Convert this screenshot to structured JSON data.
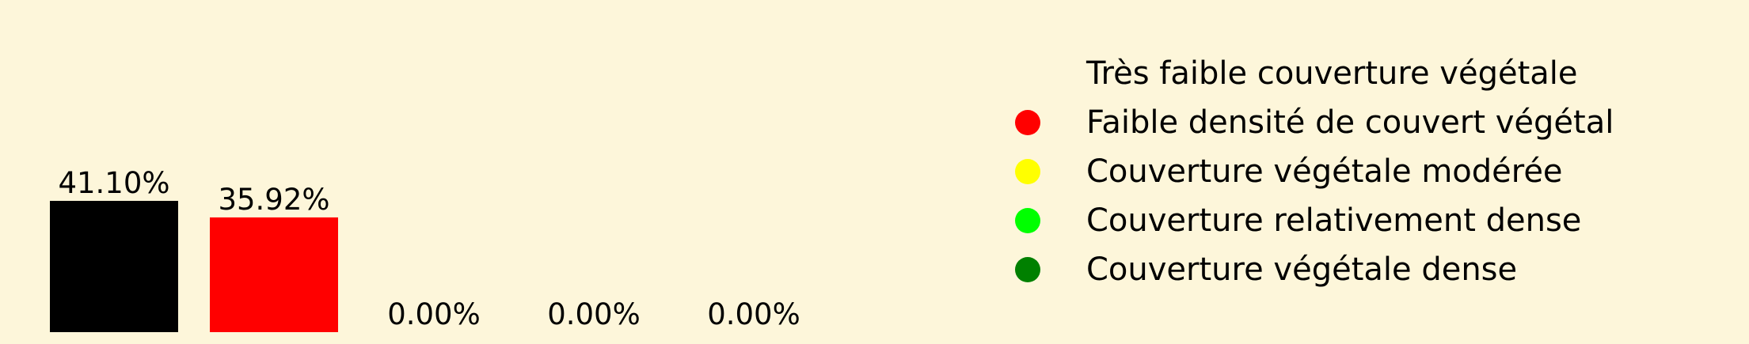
{
  "chart_data": {
    "type": "bar",
    "categories": [
      "Très faible couverture végétale",
      "Faible densité de couvert végétal",
      "Couverture végétale modérée",
      "Couverture relativement dense",
      "Couverture végétale dense"
    ],
    "values": [
      41.1,
      35.92,
      0.0,
      0.0,
      0.0
    ],
    "value_labels": [
      "41.10%",
      "35.92%",
      "0.00%",
      "0.00%",
      "0.00%"
    ],
    "colors": [
      "#000000",
      "#ff0000",
      "#ffff00",
      "#00ff00",
      "#008000"
    ],
    "legend_position": "right",
    "grid": false,
    "axes_visible": false
  },
  "legend": {
    "items": [
      {
        "label": "Très faible couverture végétale",
        "color": "#000000"
      },
      {
        "label": "Faible densité de couvert végétal",
        "color": "#ff0000"
      },
      {
        "label": "Couverture végétale modérée",
        "color": "#ffff00"
      },
      {
        "label": "Couverture relativement dense",
        "color": "#00ff00"
      },
      {
        "label": "Couverture végétale dense",
        "color": "#008000"
      }
    ]
  }
}
